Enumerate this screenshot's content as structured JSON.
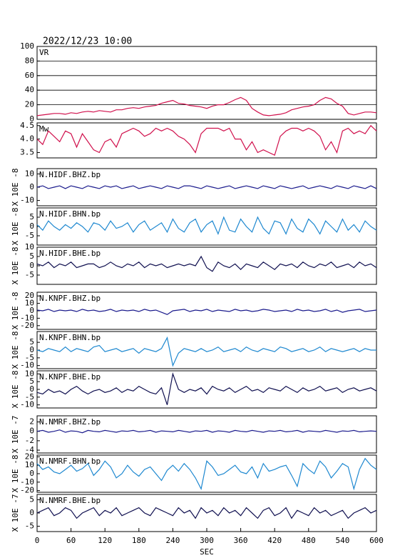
{
  "chart_data": {
    "type": "multi-panel",
    "date": "2022/12/23 10:00",
    "x_label": "SEC",
    "xlim": [
      0,
      600
    ],
    "xticks": [
      0,
      60,
      120,
      180,
      240,
      300,
      360,
      420,
      480,
      540,
      600
    ],
    "x": [
      0,
      10,
      20,
      30,
      40,
      50,
      60,
      70,
      80,
      90,
      100,
      110,
      120,
      130,
      140,
      150,
      160,
      170,
      180,
      190,
      200,
      210,
      220,
      230,
      240,
      250,
      260,
      270,
      280,
      290,
      300,
      310,
      320,
      330,
      340,
      350,
      360,
      370,
      380,
      390,
      400,
      410,
      420,
      430,
      440,
      450,
      460,
      470,
      480,
      490,
      500,
      510,
      520,
      530,
      540,
      550,
      560,
      570,
      580,
      590,
      600
    ],
    "panels": [
      {
        "type": "line",
        "name": "VR",
        "color": "#d0104c",
        "grid": true,
        "ylim": [
          0,
          100
        ],
        "yticks": [
          0,
          20,
          40,
          60,
          80,
          100
        ],
        "values": [
          5,
          6,
          7,
          8,
          8,
          7,
          9,
          8,
          10,
          11,
          10,
          12,
          11,
          10,
          13,
          13,
          15,
          16,
          15,
          17,
          18,
          19,
          22,
          24,
          26,
          22,
          21,
          19,
          18,
          17,
          15,
          18,
          20,
          20,
          23,
          27,
          30,
          26,
          15,
          10,
          6,
          5,
          6,
          7,
          9,
          13,
          15,
          17,
          18,
          20,
          26,
          30,
          28,
          22,
          18,
          8,
          6,
          8,
          10,
          10,
          9
        ]
      },
      {
        "type": "line",
        "name": "Mw",
        "color": "#d0104c",
        "ylim": [
          3.3,
          4.6
        ],
        "yticks": [
          3.5,
          {
            "value": 4,
            "label": "4.0"
          },
          4.5
        ],
        "values": [
          4.0,
          3.8,
          4.3,
          4.1,
          3.9,
          4.3,
          4.2,
          3.7,
          4.2,
          3.9,
          3.6,
          3.5,
          3.9,
          4.0,
          3.7,
          4.2,
          4.3,
          4.4,
          4.3,
          4.1,
          4.2,
          4.4,
          4.3,
          4.4,
          4.3,
          4.1,
          4.0,
          3.8,
          3.5,
          4.2,
          4.4,
          4.4,
          4.4,
          4.3,
          4.4,
          4.0,
          4.0,
          3.6,
          3.9,
          3.5,
          3.6,
          3.5,
          3.4,
          4.1,
          4.3,
          4.4,
          4.4,
          4.3,
          4.4,
          4.3,
          4.1,
          3.6,
          3.9,
          3.5,
          4.3,
          4.4,
          4.2,
          4.3,
          4.2,
          4.5,
          4.3
        ]
      },
      {
        "type": "line",
        "name": "N.HIDF.BHZ.bp",
        "y_label": "X 10E -8",
        "color": "#1a1a8c",
        "ylim": [
          -14,
          14
        ],
        "yticks": [
          -10,
          0,
          10
        ],
        "values": [
          0,
          1,
          -1,
          0,
          1,
          -1,
          1,
          0,
          -1,
          1,
          0,
          -1,
          1,
          0,
          1,
          -1,
          0,
          1,
          -1,
          0,
          1,
          0,
          -1,
          1,
          0,
          -1,
          1,
          1,
          0,
          -1,
          1,
          0,
          -1,
          0,
          1,
          -1,
          0,
          1,
          0,
          -1,
          1,
          0,
          -1,
          1,
          0,
          -1,
          0,
          1,
          -1,
          0,
          1,
          0,
          -1,
          1,
          0,
          -1,
          1,
          0,
          -1,
          1,
          -1
        ]
      },
      {
        "type": "line",
        "name": "N.HIDF.BHN.bp",
        "y_label": "X 10E -8",
        "color": "#1e88d0",
        "ylim": [
          -10,
          10
        ],
        "yticks": [
          -5,
          0,
          5
        ],
        "values": [
          1,
          -2,
          3,
          0,
          -2,
          1,
          -1,
          2,
          0,
          -3,
          2,
          1,
          -2,
          3,
          -1,
          0,
          2,
          -3,
          1,
          3,
          -2,
          0,
          2,
          -3,
          4,
          -1,
          -3,
          2,
          4,
          -3,
          1,
          3,
          -4,
          5,
          -2,
          -3,
          4,
          0,
          -3,
          5,
          -1,
          -4,
          3,
          2,
          -4,
          4,
          -1,
          -3,
          4,
          1,
          -4,
          3,
          0,
          -3,
          4,
          -2,
          1,
          -3,
          3,
          0,
          -2
        ]
      },
      {
        "type": "line",
        "name": "N.HIDF.BHE.bp",
        "y_label": "X 10E -8",
        "color": "#101050",
        "ylim": [
          -10,
          10
        ],
        "yticks": [
          -5,
          0,
          5,
          10
        ],
        "values": [
          1,
          0,
          2,
          -1,
          1,
          0,
          2,
          -1,
          0,
          1,
          1,
          -1,
          0,
          2,
          0,
          -1,
          1,
          0,
          2,
          -1,
          1,
          0,
          1,
          -1,
          0,
          1,
          0,
          1,
          0,
          5,
          -1,
          -3,
          2,
          0,
          -1,
          1,
          -2,
          1,
          0,
          -1,
          2,
          0,
          -2,
          1,
          0,
          1,
          -1,
          2,
          0,
          -1,
          1,
          0,
          2,
          -1,
          0,
          1,
          -1,
          2,
          0,
          1,
          -1
        ]
      },
      {
        "type": "line",
        "name": "N.KNPF.BHZ.bp",
        "y_label": "X 10E -8",
        "color": "#1a1a8c",
        "ylim": [
          -25,
          25
        ],
        "yticks": [
          -20,
          -10,
          0,
          10,
          20
        ],
        "values": [
          1,
          0,
          2,
          -1,
          1,
          0,
          1,
          -1,
          2,
          0,
          1,
          -1,
          0,
          2,
          -1,
          1,
          0,
          1,
          -1,
          2,
          0,
          1,
          -2,
          -5,
          0,
          1,
          2,
          -1,
          1,
          0,
          2,
          -1,
          1,
          0,
          -1,
          2,
          0,
          1,
          -1,
          0,
          2,
          1,
          -1,
          0,
          1,
          -1,
          2,
          0,
          1,
          -1,
          0,
          2,
          -1,
          1,
          -2,
          0,
          1,
          2,
          -1,
          0,
          1
        ]
      },
      {
        "type": "line",
        "name": "N.KNPF.BHN.bp",
        "y_label": "X 10E -8",
        "color": "#1e88d0",
        "ylim": [
          -12,
          12
        ],
        "yticks": [
          -10,
          -5,
          0,
          5
        ],
        "values": [
          0,
          -1,
          1,
          0,
          -1,
          2,
          -1,
          1,
          0,
          -1,
          2,
          3,
          -1,
          0,
          1,
          -1,
          0,
          1,
          -2,
          1,
          0,
          -1,
          1,
          8,
          -10,
          -2,
          1,
          0,
          -1,
          1,
          -1,
          0,
          2,
          -1,
          0,
          1,
          -1,
          2,
          0,
          -1,
          1,
          0,
          -1,
          2,
          1,
          -1,
          0,
          1,
          -1,
          0,
          2,
          -1,
          1,
          0,
          -1,
          0,
          1,
          -1,
          1,
          0,
          0
        ]
      },
      {
        "type": "line",
        "name": "N.KNPF.BHE.bp",
        "y_label": "X 10E -8",
        "color": "#101050",
        "ylim": [
          -12,
          12
        ],
        "yticks": [
          -10,
          -5,
          0,
          5,
          10
        ],
        "values": [
          -2,
          -3,
          0,
          -2,
          -1,
          -3,
          0,
          2,
          -1,
          -3,
          -1,
          0,
          -2,
          -1,
          1,
          -2,
          0,
          -1,
          2,
          0,
          -2,
          -3,
          1,
          -10,
          10,
          0,
          -2,
          0,
          -1,
          1,
          -3,
          2,
          0,
          -1,
          1,
          -2,
          0,
          2,
          -1,
          0,
          -2,
          1,
          0,
          -1,
          2,
          0,
          -2,
          1,
          -1,
          0,
          2,
          -1,
          0,
          1,
          -2,
          0,
          1,
          -1,
          0,
          1,
          -1
        ]
      },
      {
        "type": "line",
        "name": "N.NMRF.BHZ.bp",
        "y_label": "X 10E -7",
        "color": "#1a1a8c",
        "ylim": [
          -4.6,
          3.3
        ],
        "yticks": [
          -4,
          -2,
          0,
          2
        ],
        "values": [
          0,
          0.2,
          -0.2,
          0,
          0.3,
          -0.2,
          0.1,
          0,
          -0.3,
          0.2,
          0,
          -0.1,
          0.2,
          0,
          -0.2,
          0.1,
          0,
          0.2,
          -0.1,
          0,
          0.2,
          -0.2,
          0.1,
          0,
          -0.1,
          0.2,
          0,
          -0.2,
          0.1,
          0,
          0.2,
          -0.2,
          0.1,
          0,
          -0.2,
          0.2,
          0,
          -0.1,
          0.2,
          0,
          -0.2,
          0.1,
          0,
          0.2,
          -0.1,
          0,
          0.2,
          -0.2,
          0.1,
          0,
          -0.1,
          0.2,
          0,
          -0.2,
          0.1,
          0,
          0.2,
          -0.1,
          0,
          0.1,
          0
        ]
      },
      {
        "type": "line",
        "name": "N.NMRF.BHN.bp",
        "y_label": "X 10E -8",
        "color": "#1e88d0",
        "ylim": [
          -22,
          22
        ],
        "yticks": [
          -20,
          -10,
          0,
          10,
          20
        ],
        "values": [
          12,
          5,
          8,
          2,
          0,
          5,
          10,
          3,
          6,
          12,
          -2,
          5,
          15,
          8,
          -5,
          0,
          10,
          2,
          -3,
          5,
          8,
          0,
          -8,
          4,
          10,
          3,
          12,
          5,
          -5,
          -18,
          15,
          8,
          -2,
          0,
          5,
          10,
          2,
          0,
          8,
          -5,
          12,
          3,
          5,
          8,
          10,
          -2,
          -15,
          12,
          5,
          0,
          15,
          8,
          -5,
          3,
          12,
          8,
          -18,
          5,
          18,
          10,
          5
        ]
      },
      {
        "type": "line",
        "name": "N.NMRF.BHE.bp",
        "y_label": "X 10E -7",
        "color": "#101050",
        "ylim": [
          -7,
          7
        ],
        "yticks": [
          -5,
          0,
          5
        ],
        "values": [
          0,
          1,
          2,
          -1,
          0,
          2,
          1,
          -2,
          0,
          1,
          2,
          -1,
          1,
          0,
          2,
          -1,
          0,
          1,
          2,
          0,
          -1,
          2,
          1,
          0,
          -1,
          2,
          0,
          1,
          -2,
          2,
          0,
          1,
          -1,
          2,
          0,
          1,
          -1,
          2,
          0,
          -2,
          1,
          2,
          -1,
          0,
          2,
          -2,
          1,
          0,
          -1,
          2,
          0,
          1,
          -1,
          0,
          1,
          -2,
          0,
          1,
          2,
          0,
          1
        ]
      }
    ]
  }
}
